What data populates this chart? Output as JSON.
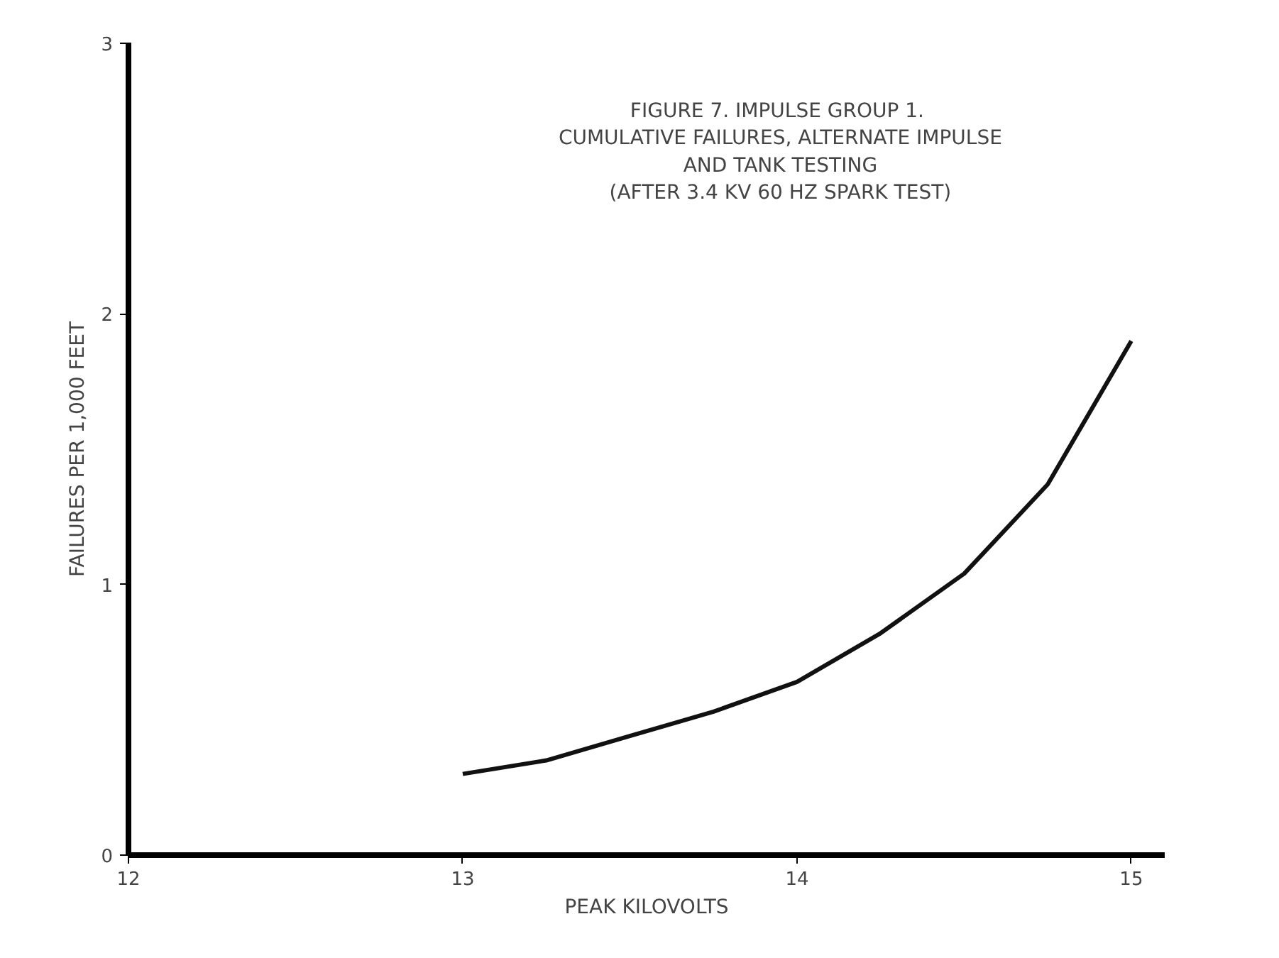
{
  "chart_data": {
    "type": "line",
    "title": "FIGURE 7.  IMPULSE GROUP 1.\nCUMULATIVE FAILURES, ALTERNATE IMPULSE\nAND TANK TESTING\n(AFTER 3.4 KV 60 HZ SPARK TEST)",
    "xlabel": "PEAK KILOVOLTS",
    "ylabel": "FAILURES PER 1,000 FEET",
    "x": [
      13.0,
      13.25,
      13.5,
      13.75,
      14.0,
      14.25,
      14.5,
      14.75,
      15.0
    ],
    "series": [
      {
        "color": "#111111",
        "values": [
          0.3,
          0.35,
          0.44,
          0.53,
          0.64,
          0.82,
          1.04,
          1.37,
          1.9
        ]
      }
    ],
    "xlim": [
      12,
      15.1
    ],
    "ylim": [
      0,
      3
    ],
    "xticks": [
      12,
      13,
      14,
      15
    ],
    "yticks": [
      0,
      1,
      2,
      3
    ],
    "line_style": "solid"
  }
}
